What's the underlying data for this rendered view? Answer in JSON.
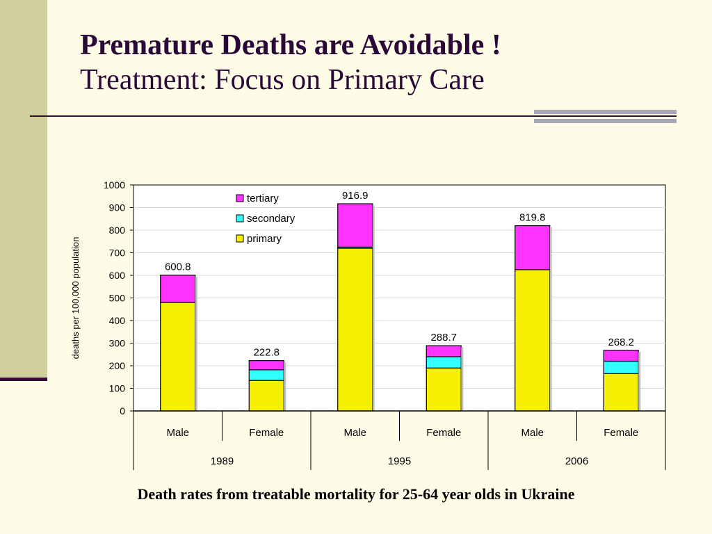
{
  "slide": {
    "title": "Premature Deaths are Avoidable !",
    "subtitle": "Treatment: Focus on Primary Care",
    "caption": "Death rates from treatable mortality for 25-64 year olds in Ukraine"
  },
  "chart_data": {
    "type": "bar",
    "stacked": true,
    "title": "",
    "xlabel": "",
    "ylabel": "deaths per 100,000 population",
    "ylim": [
      0,
      1000
    ],
    "yticks": [
      0,
      100,
      200,
      300,
      400,
      500,
      600,
      700,
      800,
      900,
      1000
    ],
    "grid": true,
    "legend_position": "top-left",
    "categories": [
      "Male",
      "Female",
      "Male",
      "Female",
      "Male",
      "Female"
    ],
    "groups": [
      {
        "label": "1989",
        "span": 2
      },
      {
        "label": "1995",
        "span": 2
      },
      {
        "label": "2006",
        "span": 2
      }
    ],
    "series": [
      {
        "name": "primary",
        "color": "#f4f000",
        "values": [
          480,
          135,
          720,
          190,
          625,
          165
        ]
      },
      {
        "name": "secondary",
        "color": "#33ffff",
        "values": [
          0,
          47,
          5,
          50,
          0,
          55
        ]
      },
      {
        "name": "tertiary",
        "color": "#ff33ff",
        "values": [
          120.8,
          40.8,
          191.9,
          48.7,
          194.8,
          48.2
        ]
      }
    ],
    "legend_order": [
      "tertiary",
      "secondary",
      "primary"
    ],
    "totals": [
      "600.8",
      "222.8",
      "916.9",
      "288.7",
      "819.8",
      "268.2"
    ]
  }
}
